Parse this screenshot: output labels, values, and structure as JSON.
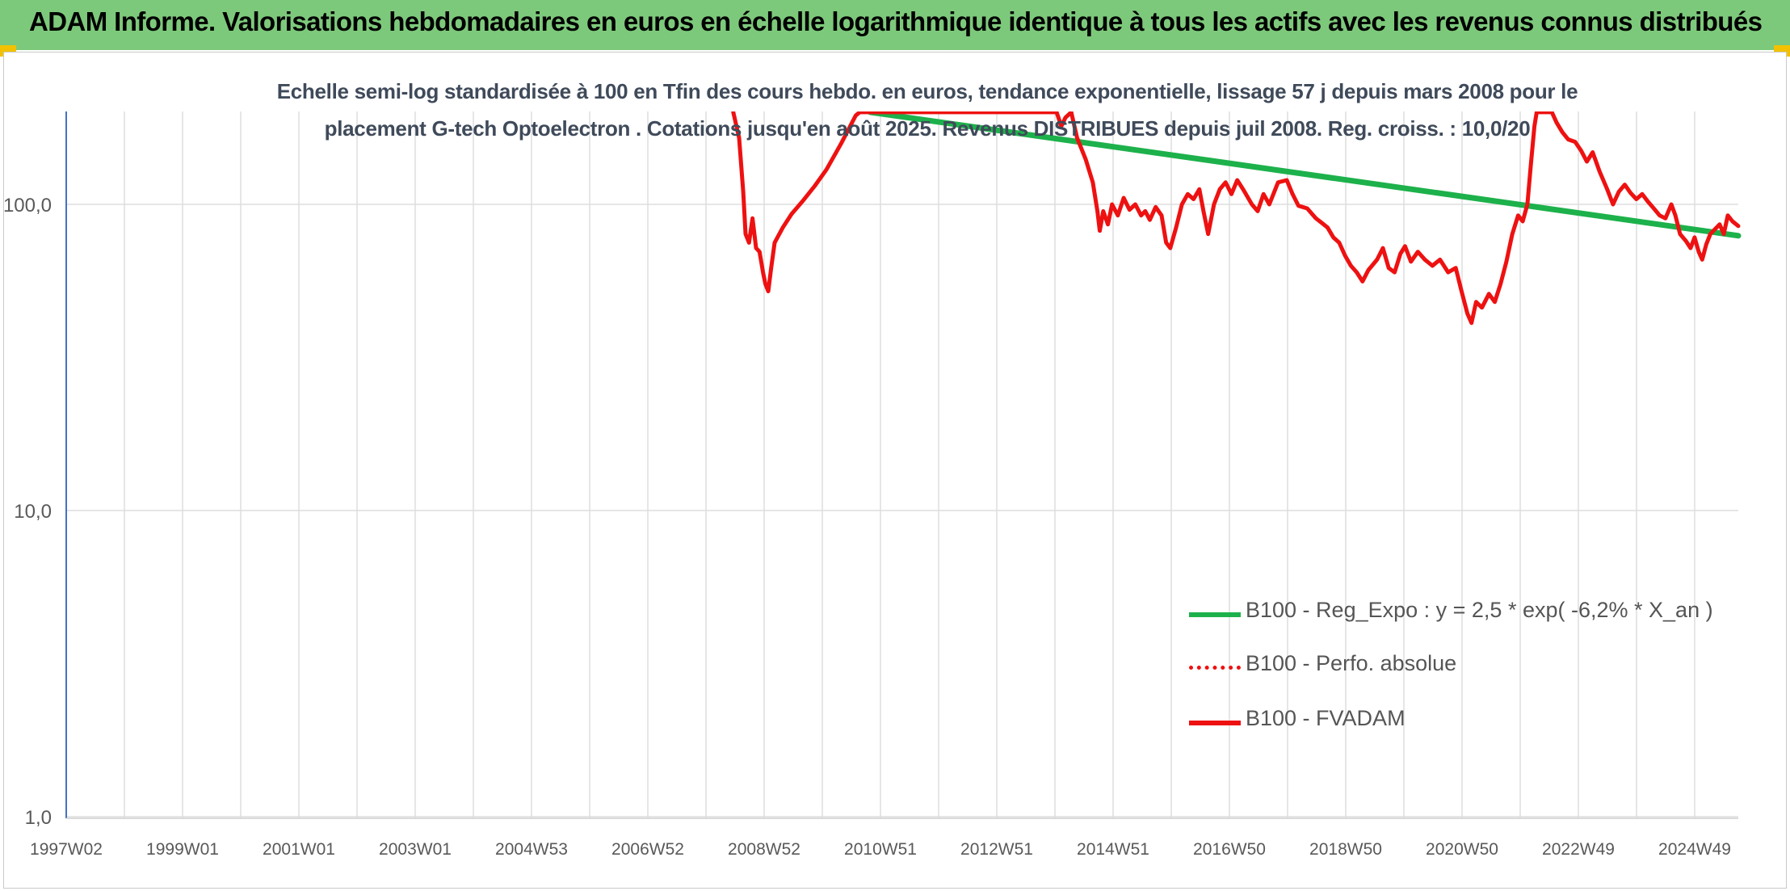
{
  "header": {
    "title": "ADAM Informe. Valorisations hebdomadaires en euros en échelle logarithmique identique à tous les actifs avec les revenus connus distribués"
  },
  "colors": {
    "header_bg": "#7dc97b",
    "regression": "#1db14b",
    "fvadam": "#ee1111",
    "perfo": "#ee1111",
    "grid": "#dedede",
    "axis": "#4472c4"
  },
  "chart_data": {
    "type": "line",
    "subtitle_lines": [
      "Echelle semi-log standardisée à 100 en Tfin des cours hebdo. en euros, tendance exponentielle, lissage 57 j depuis mars 2008 pour le",
      "placement G-tech Optoelectron . Cotations jusqu'en août 2025. Revenus DISTRIBUES depuis juil 2008. Reg. croiss. : 10,0/20"
    ],
    "y_scale": "log",
    "ylim": [
      1,
      200
    ],
    "y_ticks": [
      "1,0",
      "10,0",
      "100,0"
    ],
    "x_ticks": [
      "1997W02",
      "1999W01",
      "2001W01",
      "2003W01",
      "2004W53",
      "2006W52",
      "2008W52",
      "2010W51",
      "2012W51",
      "2014W51",
      "2016W50",
      "2018W50",
      "2020W50",
      "2022W49",
      "2024W49"
    ],
    "xlim": [
      1997.0,
      2025.7
    ],
    "grid": true,
    "legend_position": "right",
    "series": [
      {
        "name": "B100 - Reg_Expo : y = 2,5 * exp( -6,2% *  X_an )",
        "style": "solid-green",
        "points": [
          [
            2010.8,
            200
          ],
          [
            2025.7,
            79
          ]
        ]
      },
      {
        "name": "B100 - Perfo. absolue",
        "style": "dotted-red",
        "points": []
      },
      {
        "name": "B100 - FVADAM",
        "style": "solid-red",
        "points": [
          [
            2008.45,
            200
          ],
          [
            2008.55,
            165
          ],
          [
            2008.62,
            110
          ],
          [
            2008.66,
            80
          ],
          [
            2008.72,
            75
          ],
          [
            2008.78,
            90
          ],
          [
            2008.84,
            72
          ],
          [
            2008.9,
            70
          ],
          [
            2008.96,
            60
          ],
          [
            2009.0,
            55
          ],
          [
            2009.05,
            52
          ],
          [
            2009.1,
            62
          ],
          [
            2009.16,
            75
          ],
          [
            2009.3,
            84
          ],
          [
            2009.45,
            93
          ],
          [
            2009.65,
            103
          ],
          [
            2009.85,
            115
          ],
          [
            2010.05,
            130
          ],
          [
            2010.3,
            158
          ],
          [
            2010.55,
            195
          ],
          [
            2010.62,
            200
          ],
          [
            2014.0,
            200
          ],
          [
            2014.08,
            180
          ],
          [
            2014.15,
            192
          ],
          [
            2014.25,
            200
          ],
          [
            2014.35,
            165
          ],
          [
            2014.5,
            140
          ],
          [
            2014.62,
            118
          ],
          [
            2014.7,
            95
          ],
          [
            2014.74,
            82
          ],
          [
            2014.8,
            95
          ],
          [
            2014.88,
            86
          ],
          [
            2014.95,
            100
          ],
          [
            2015.05,
            92
          ],
          [
            2015.15,
            105
          ],
          [
            2015.25,
            96
          ],
          [
            2015.35,
            100
          ],
          [
            2015.45,
            92
          ],
          [
            2015.52,
            95
          ],
          [
            2015.6,
            89
          ],
          [
            2015.7,
            98
          ],
          [
            2015.8,
            92
          ],
          [
            2015.88,
            75
          ],
          [
            2015.95,
            72
          ],
          [
            2016.05,
            84
          ],
          [
            2016.15,
            100
          ],
          [
            2016.25,
            108
          ],
          [
            2016.35,
            104
          ],
          [
            2016.45,
            112
          ],
          [
            2016.52,
            95
          ],
          [
            2016.6,
            80
          ],
          [
            2016.7,
            100
          ],
          [
            2016.8,
            112
          ],
          [
            2016.9,
            118
          ],
          [
            2017.0,
            108
          ],
          [
            2017.1,
            120
          ],
          [
            2017.2,
            112
          ],
          [
            2017.35,
            100
          ],
          [
            2017.45,
            95
          ],
          [
            2017.55,
            108
          ],
          [
            2017.65,
            100
          ],
          [
            2017.8,
            118
          ],
          [
            2017.95,
            120
          ],
          [
            2018.05,
            108
          ],
          [
            2018.15,
            99
          ],
          [
            2018.3,
            97
          ],
          [
            2018.45,
            90
          ],
          [
            2018.55,
            87
          ],
          [
            2018.65,
            84
          ],
          [
            2018.75,
            78
          ],
          [
            2018.85,
            75
          ],
          [
            2018.95,
            68
          ],
          [
            2019.05,
            63
          ],
          [
            2019.15,
            60
          ],
          [
            2019.25,
            56
          ],
          [
            2019.35,
            61
          ],
          [
            2019.5,
            66
          ],
          [
            2019.6,
            72
          ],
          [
            2019.7,
            62
          ],
          [
            2019.8,
            60
          ],
          [
            2019.9,
            69
          ],
          [
            2019.98,
            73
          ],
          [
            2020.08,
            65
          ],
          [
            2020.2,
            70
          ],
          [
            2020.32,
            66
          ],
          [
            2020.45,
            63
          ],
          [
            2020.58,
            66
          ],
          [
            2020.72,
            60
          ],
          [
            2020.85,
            62
          ],
          [
            2020.95,
            52
          ],
          [
            2021.05,
            44
          ],
          [
            2021.12,
            41
          ],
          [
            2021.2,
            48
          ],
          [
            2021.3,
            46
          ],
          [
            2021.42,
            51
          ],
          [
            2021.52,
            48
          ],
          [
            2021.62,
            55
          ],
          [
            2021.72,
            65
          ],
          [
            2021.82,
            80
          ],
          [
            2021.92,
            92
          ],
          [
            2022.0,
            88
          ],
          [
            2022.08,
            100
          ],
          [
            2022.14,
            135
          ],
          [
            2022.2,
            180
          ],
          [
            2022.24,
            200
          ],
          [
            2022.5,
            200
          ],
          [
            2022.58,
            185
          ],
          [
            2022.68,
            172
          ],
          [
            2022.78,
            163
          ],
          [
            2022.9,
            160
          ],
          [
            2023.0,
            150
          ],
          [
            2023.1,
            138
          ],
          [
            2023.2,
            148
          ],
          [
            2023.32,
            128
          ],
          [
            2023.45,
            112
          ],
          [
            2023.55,
            100
          ],
          [
            2023.65,
            110
          ],
          [
            2023.75,
            116
          ],
          [
            2023.85,
            109
          ],
          [
            2023.95,
            104
          ],
          [
            2024.05,
            108
          ],
          [
            2024.15,
            102
          ],
          [
            2024.25,
            97
          ],
          [
            2024.35,
            92
          ],
          [
            2024.45,
            90
          ],
          [
            2024.55,
            100
          ],
          [
            2024.62,
            92
          ],
          [
            2024.7,
            80
          ],
          [
            2024.8,
            76
          ],
          [
            2024.88,
            72
          ],
          [
            2024.95,
            78
          ],
          [
            2025.02,
            70
          ],
          [
            2025.08,
            66
          ],
          [
            2025.15,
            74
          ],
          [
            2025.22,
            80
          ],
          [
            2025.3,
            83
          ],
          [
            2025.38,
            86
          ],
          [
            2025.45,
            80
          ],
          [
            2025.52,
            92
          ],
          [
            2025.6,
            88
          ],
          [
            2025.7,
            85
          ]
        ]
      }
    ]
  }
}
